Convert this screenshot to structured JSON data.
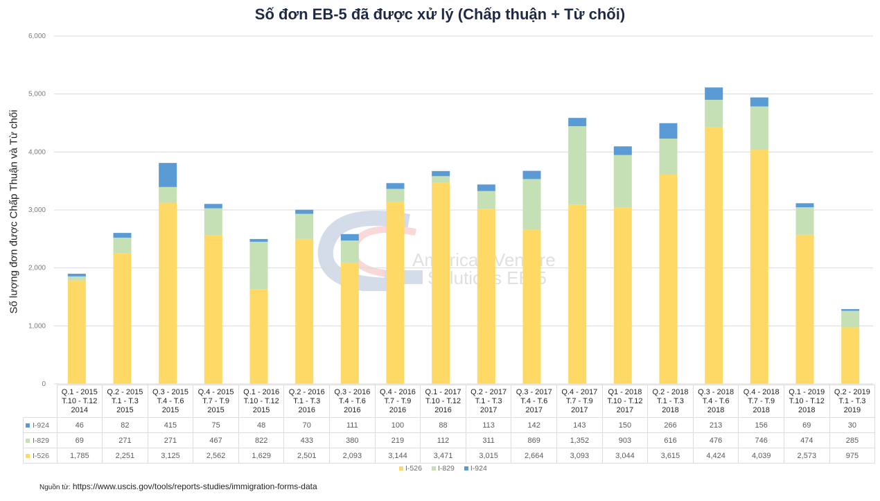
{
  "chart_data": {
    "type": "bar",
    "stacked": true,
    "title": "Số đơn EB-5 đã được xử lý (Chấp thuận + Từ chối)",
    "xlabel": "",
    "ylabel": "Số lượng đơn được Chấp Thuận và Từ chối",
    "ylim": [
      0,
      6000
    ],
    "yticks": [
      "0",
      "1,000",
      "2,000",
      "3,000",
      "4,000",
      "5,000",
      "6,000"
    ],
    "ytick_values": [
      0,
      1000,
      2000,
      3000,
      4000,
      5000,
      6000
    ],
    "grid": true,
    "legend_position": "bottom",
    "categories": [
      [
        "Q.1 - 2015",
        "T.10 - T.12",
        "2014"
      ],
      [
        "Q.2 - 2015",
        "T.1 - T.3",
        "2015"
      ],
      [
        "Q.3 - 2015",
        "T.4 - T.6",
        "2015"
      ],
      [
        "Q.4 - 2015",
        "T.7 - T.9",
        "2015"
      ],
      [
        "Q.1 - 2016",
        "T.10 - T.12",
        "2015"
      ],
      [
        "Q.2 - 2016",
        "T.1 - T.3",
        "2016"
      ],
      [
        "Q.3 - 2016",
        "T.4 - T.6",
        "2016"
      ],
      [
        "Q.4 - 2016",
        "T.7 - T.9",
        "2016"
      ],
      [
        "Q.1 - 2017",
        "T.10 - T.12",
        "2016"
      ],
      [
        "Q.2 - 2017",
        "T.1 - T.3",
        "2017"
      ],
      [
        "Q.3 - 2017",
        "T.4 - T.6",
        "2017"
      ],
      [
        "Q.4 - 2017",
        "T.7 - T.9",
        "2017"
      ],
      [
        "Q1 - 2018",
        "T.10 - T.12",
        "2017"
      ],
      [
        "Q.2 - 2018",
        "T.1 - T.3",
        "2018"
      ],
      [
        "Q.3 - 2018",
        "T.4 - T.6",
        "2018"
      ],
      [
        "Q.4 - 2018",
        "T.7 - T.9",
        "2018"
      ],
      [
        "Q.1 - 2019",
        "T.10 - T.12",
        "2018"
      ],
      [
        "Q.2 - 2019",
        "T.1 - T.3",
        "2019"
      ]
    ],
    "series": [
      {
        "name": "I-526",
        "color": "#ffd966",
        "values": [
          1785,
          2251,
          3125,
          2562,
          1629,
          2501,
          2093,
          3144,
          3471,
          3015,
          2664,
          3093,
          3044,
          3615,
          4424,
          4039,
          2573,
          975
        ],
        "labels": [
          "1,785",
          "2,251",
          "3,125",
          "2,562",
          "1,629",
          "2,501",
          "2,093",
          "3,144",
          "3,471",
          "3,015",
          "2,664",
          "3,093",
          "3,044",
          "3,615",
          "4,424",
          "4,039",
          "2,573",
          "975"
        ]
      },
      {
        "name": "I-829",
        "color": "#c5e0b4",
        "values": [
          69,
          271,
          271,
          467,
          822,
          433,
          380,
          219,
          112,
          311,
          869,
          1352,
          903,
          616,
          476,
          746,
          474,
          285
        ],
        "labels": [
          "69",
          "271",
          "271",
          "467",
          "822",
          "433",
          "380",
          "219",
          "112",
          "311",
          "869",
          "1,352",
          "903",
          "616",
          "476",
          "746",
          "474",
          "285"
        ]
      },
      {
        "name": "I-924",
        "color": "#5b9bd5",
        "values": [
          46,
          82,
          415,
          75,
          48,
          70,
          111,
          100,
          88,
          113,
          142,
          143,
          150,
          266,
          213,
          156,
          69,
          30
        ],
        "labels": [
          "46",
          "82",
          "415",
          "75",
          "48",
          "70",
          "111",
          "100",
          "88",
          "113",
          "142",
          "143",
          "150",
          "266",
          "213",
          "156",
          "69",
          "30"
        ]
      }
    ],
    "table_row_order": [
      "I-924",
      "I-829",
      "I-526"
    ],
    "legend": [
      "I-526",
      "I-829",
      "I-924"
    ]
  },
  "source": {
    "label": "Nguồn từ:",
    "url_text": "https://www.uscis.gov/tools/reports-studies/immigration-forms-data"
  },
  "watermark": {
    "line1": "American Venture",
    "line2": "Solutions EB-5"
  }
}
